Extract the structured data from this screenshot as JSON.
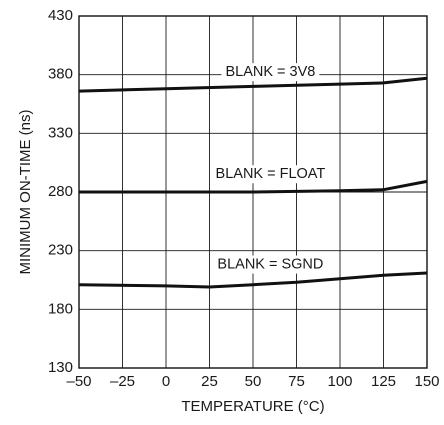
{
  "chart_data": {
    "type": "line",
    "xlabel": "TEMPERATURE (°C)",
    "ylabel": "MINIMUM ON-TIME (ns)",
    "xlim": [
      -50,
      150
    ],
    "ylim": [
      130,
      430
    ],
    "xticks": [
      -50,
      -25,
      0,
      25,
      50,
      75,
      100,
      125,
      150
    ],
    "yticks": [
      130,
      180,
      230,
      280,
      330,
      380,
      430
    ],
    "xtick_labels": [
      "–50",
      "–25",
      "0",
      "25",
      "50",
      "75",
      "100",
      "125",
      "150"
    ],
    "ytick_labels": [
      "130",
      "180",
      "230",
      "280",
      "330",
      "380",
      "430"
    ],
    "grid": true,
    "series": [
      {
        "name": "BLANK = 3V8",
        "x": [
          -50,
          0,
          50,
          100,
          125,
          150
        ],
        "y": [
          366,
          368,
          370,
          372,
          373,
          377
        ],
        "label_at": [
          60,
          382
        ]
      },
      {
        "name": "BLANK = FLOAT",
        "x": [
          -50,
          0,
          50,
          100,
          125,
          150
        ],
        "y": [
          280,
          280,
          280,
          281,
          282,
          289
        ],
        "label_at": [
          60,
          295
        ]
      },
      {
        "name": "BLANK = SGND",
        "x": [
          -50,
          0,
          25,
          50,
          75,
          100,
          125,
          150
        ],
        "y": [
          201,
          200,
          199,
          201,
          203,
          206,
          209,
          211
        ],
        "label_at": [
          60,
          218
        ]
      }
    ]
  }
}
